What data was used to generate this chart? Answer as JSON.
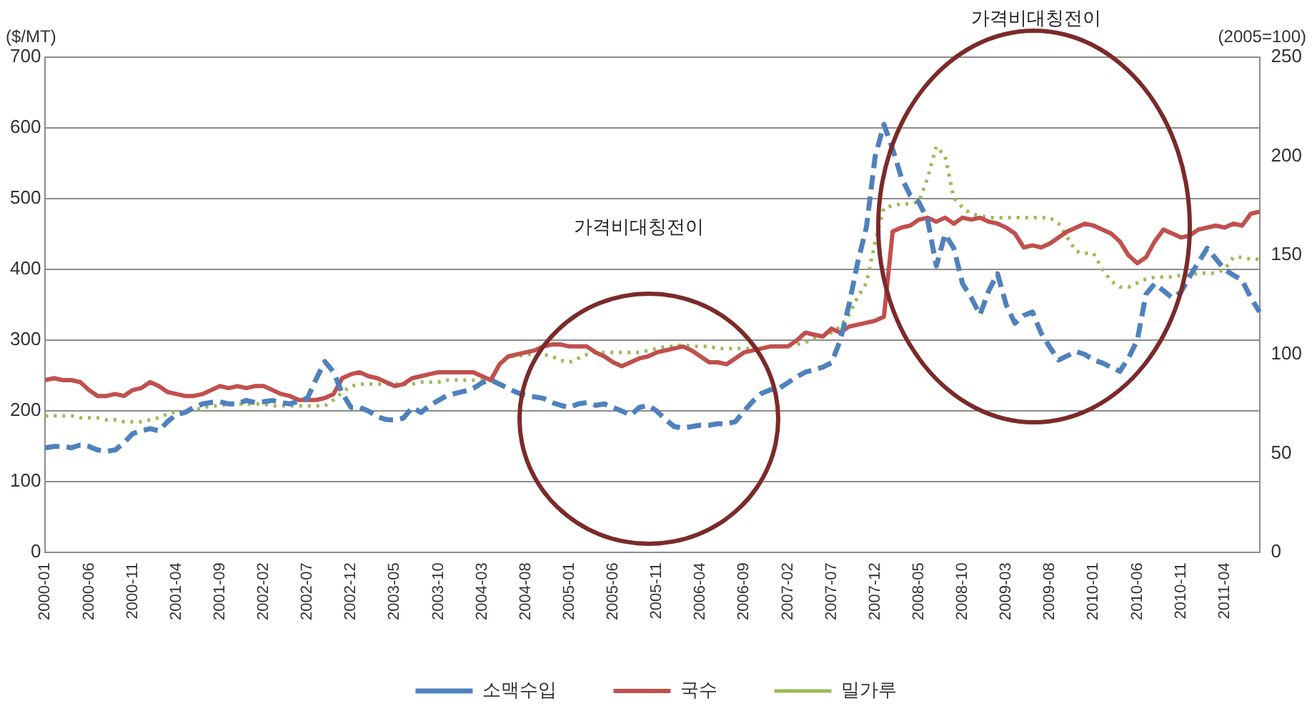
{
  "chart_data": {
    "type": "line",
    "ylabel": "($/MT)",
    "y2label": "(2005=100)",
    "annotations": [
      "가격비대칭전이",
      "가격비대칭전이"
    ],
    "categories": [
      "2000-01",
      null,
      null,
      null,
      null,
      "2000-06",
      null,
      null,
      null,
      null,
      "2000-11",
      null,
      null,
      null,
      null,
      "2001-04",
      null,
      null,
      null,
      null,
      "2001-09",
      null,
      null,
      null,
      null,
      "2002-02",
      null,
      null,
      null,
      null,
      "2002-07",
      null,
      null,
      null,
      null,
      "2002-12",
      null,
      null,
      null,
      null,
      "2003-05",
      null,
      null,
      null,
      null,
      "2003-10",
      null,
      null,
      null,
      null,
      "2004-03",
      null,
      null,
      null,
      null,
      "2004-08",
      null,
      null,
      null,
      null,
      "2005-01",
      null,
      null,
      null,
      null,
      "2005-06",
      null,
      null,
      null,
      null,
      "2005-11",
      null,
      null,
      null,
      null,
      "2006-04",
      null,
      null,
      null,
      null,
      "2006-09",
      null,
      null,
      null,
      null,
      "2007-02",
      null,
      null,
      null,
      null,
      "2007-07",
      null,
      null,
      null,
      null,
      "2007-12",
      null,
      null,
      null,
      null,
      "2008-05",
      null,
      null,
      null,
      null,
      "2008-10",
      null,
      null,
      null,
      null,
      "2009-03",
      null,
      null,
      null,
      null,
      "2009-08",
      null,
      null,
      null,
      null,
      "2010-01",
      null,
      null,
      null,
      null,
      "2010-06",
      null,
      null,
      null,
      null,
      "2010-11",
      null,
      null,
      null,
      null,
      "2011-04",
      null,
      null,
      null,
      null
    ],
    "series": [
      {
        "name": "소맥수입",
        "color": "#4f81bd",
        "line_style": "dashed",
        "values": [
          148,
          150,
          150,
          148,
          152,
          150,
          145,
          143,
          145,
          155,
          168,
          172,
          175,
          172,
          185,
          195,
          198,
          205,
          210,
          212,
          213,
          210,
          210,
          215,
          212,
          213,
          215,
          212,
          210,
          214,
          218,
          245,
          270,
          255,
          225,
          205,
          205,
          200,
          192,
          188,
          187,
          190,
          205,
          198,
          208,
          215,
          222,
          225,
          228,
          232,
          240,
          244,
          238,
          232,
          226,
          222,
          220,
          218,
          212,
          208,
          205,
          210,
          212,
          208,
          210,
          205,
          200,
          194,
          205,
          208,
          200,
          188,
          178,
          176,
          178,
          180,
          180,
          182,
          182,
          185,
          200,
          214,
          225,
          230,
          232,
          240,
          248,
          255,
          258,
          262,
          268,
          300,
          350,
          410,
          460,
          560,
          605,
          570,
          530,
          505,
          495,
          470,
          405,
          450,
          430,
          380,
          360,
          336,
          370,
          394,
          350,
          324,
          335,
          340,
          310,
          290,
          272,
          278,
          284,
          280,
          272,
          268,
          262,
          256,
          275,
          300,
          365,
          380,
          370,
          360,
          368,
          390,
          410,
          430,
          415,
          400,
          392,
          385,
          360,
          340
        ]
      },
      {
        "name": "국수",
        "color": "#c0504d",
        "line_style": "solid",
        "axis": "y2",
        "values": [
          87,
          88,
          87,
          87,
          86,
          82,
          79,
          79,
          80,
          79,
          82,
          83,
          86,
          84,
          81,
          80,
          79,
          79,
          80,
          82,
          84,
          83,
          84,
          83,
          84,
          84,
          82,
          80,
          79,
          77,
          77,
          77,
          78,
          80,
          88,
          90,
          91,
          89,
          88,
          86,
          84,
          85,
          88,
          89,
          90,
          91,
          91,
          91,
          91,
          91,
          89,
          87,
          95,
          99,
          100,
          101,
          102,
          104,
          105,
          105,
          104,
          104,
          104,
          101,
          99,
          96,
          94,
          96,
          98,
          99,
          101,
          102,
          103,
          104,
          102,
          99,
          96,
          96,
          95,
          98,
          101,
          102,
          103,
          104,
          104,
          104,
          107,
          111,
          110,
          109,
          113,
          111,
          114,
          115,
          116,
          117,
          119,
          162,
          164,
          165,
          168,
          169,
          167,
          169,
          166,
          169,
          168,
          169,
          167,
          166,
          164,
          161,
          154,
          155,
          154,
          156,
          159,
          162,
          164,
          166,
          165,
          163,
          161,
          157,
          150,
          146,
          149,
          157,
          163,
          161,
          159,
          160,
          163,
          164,
          165,
          164,
          166,
          165,
          171,
          172
        ]
      },
      {
        "name": "밀가루",
        "color": "#9bbb59",
        "line_style": "dotted",
        "axis": "y2",
        "values": [
          69,
          69,
          69,
          69,
          68,
          68,
          68,
          67,
          67,
          66,
          66,
          66,
          67,
          68,
          70,
          71,
          71,
          72,
          73,
          74,
          74,
          75,
          75,
          75,
          75,
          75,
          74,
          74,
          74,
          74,
          74,
          74,
          74,
          77,
          81,
          84,
          85,
          85,
          85,
          85,
          85,
          85,
          85,
          86,
          86,
          86,
          87,
          87,
          87,
          87,
          87,
          87,
          95,
          99,
          99,
          100,
          100,
          100,
          99,
          97,
          96,
          98,
          100,
          101,
          101,
          101,
          101,
          101,
          101,
          102,
          103,
          104,
          104,
          105,
          104,
          104,
          104,
          103,
          103,
          103,
          103,
          103,
          103,
          104,
          104,
          104,
          105,
          106,
          108,
          109,
          111,
          114,
          120,
          129,
          136,
          157,
          174,
          175,
          176,
          176,
          177,
          189,
          205,
          200,
          179,
          174,
          171,
          170,
          169,
          169,
          169,
          169,
          169,
          169,
          169,
          169,
          166,
          159,
          152,
          151,
          151,
          143,
          137,
          134,
          134,
          136,
          138,
          139,
          139,
          139,
          140,
          140,
          141,
          141,
          141,
          143,
          149,
          149,
          148,
          148
        ]
      }
    ],
    "ylim": [
      0,
      700
    ],
    "yticks": [
      0,
      100,
      200,
      300,
      400,
      500,
      600,
      700
    ],
    "y2lim": [
      0,
      250
    ],
    "y2ticks": [
      0,
      50,
      100,
      150,
      200,
      250
    ],
    "grid": "y",
    "legend": "bottom",
    "marker": "none"
  }
}
